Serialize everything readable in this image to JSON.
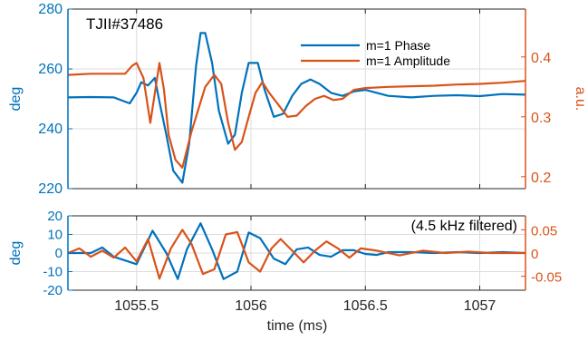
{
  "colors": {
    "blue": "#0072BD",
    "orange": "#D95319",
    "grid": "#dcdcdc",
    "axis": "#262626"
  },
  "xlabel": "time (ms)",
  "xticks": [
    1055.5,
    1056,
    1056.5,
    1057
  ],
  "xlim": [
    1055.2,
    1057.2
  ],
  "chart_data": [
    {
      "type": "line",
      "annotation": "TJII#37486",
      "ylabel": "deg",
      "ylim": [
        220,
        280
      ],
      "yticks": [
        220,
        240,
        260,
        280
      ],
      "ylabel_right": "a.u.",
      "ylim_right": [
        0.18,
        0.48
      ],
      "yticks_right": [
        0.2,
        0.3,
        0.4
      ],
      "grid": true,
      "legend_position": "top-right",
      "series": [
        {
          "name": "m=1 Phase",
          "axis": "left",
          "x": [
            1055.2,
            1055.3,
            1055.4,
            1055.47,
            1055.5,
            1055.52,
            1055.55,
            1055.58,
            1055.6,
            1055.63,
            1055.66,
            1055.7,
            1055.73,
            1055.76,
            1055.78,
            1055.8,
            1055.83,
            1055.86,
            1055.9,
            1055.93,
            1055.96,
            1055.99,
            1056.03,
            1056.06,
            1056.1,
            1056.14,
            1056.18,
            1056.22,
            1056.26,
            1056.3,
            1056.35,
            1056.4,
            1056.45,
            1056.5,
            1056.6,
            1056.7,
            1056.8,
            1056.9,
            1057.0,
            1057.1,
            1057.2
          ],
          "y": [
            250.5,
            250.6,
            250.5,
            248.5,
            252,
            255.5,
            254.5,
            257,
            249,
            238,
            226,
            222,
            235,
            261,
            272,
            272,
            262,
            246,
            235,
            238,
            252,
            262,
            262,
            253,
            244,
            245,
            251,
            255,
            256.5,
            255,
            252,
            251,
            252.5,
            253,
            251,
            250.5,
            251,
            251.2,
            250.9,
            251.6,
            251.4
          ]
        },
        {
          "name": "m=1 Amplitude",
          "axis": "right",
          "x": [
            1055.2,
            1055.3,
            1055.4,
            1055.45,
            1055.48,
            1055.5,
            1055.53,
            1055.56,
            1055.6,
            1055.62,
            1055.64,
            1055.67,
            1055.7,
            1055.72,
            1055.74,
            1055.76,
            1055.8,
            1055.84,
            1055.87,
            1055.9,
            1055.93,
            1055.96,
            1055.99,
            1056.02,
            1056.05,
            1056.08,
            1056.12,
            1056.16,
            1056.2,
            1056.24,
            1056.28,
            1056.32,
            1056.36,
            1056.4,
            1056.45,
            1056.5,
            1056.6,
            1056.7,
            1056.8,
            1056.9,
            1057.0,
            1057.1,
            1057.2
          ],
          "y": [
            0.37,
            0.372,
            0.372,
            0.372,
            0.385,
            0.39,
            0.365,
            0.29,
            0.39,
            0.345,
            0.27,
            0.228,
            0.215,
            0.245,
            0.275,
            0.3,
            0.35,
            0.37,
            0.355,
            0.29,
            0.245,
            0.258,
            0.3,
            0.34,
            0.358,
            0.34,
            0.32,
            0.3,
            0.302,
            0.318,
            0.33,
            0.335,
            0.328,
            0.33,
            0.345,
            0.348,
            0.35,
            0.351,
            0.352,
            0.354,
            0.355,
            0.357,
            0.36
          ]
        }
      ]
    },
    {
      "type": "line",
      "annotation": "(4.5 kHz filtered)",
      "ylabel": "deg",
      "ylim": [
        -20,
        20
      ],
      "yticks": [
        -20,
        -10,
        0,
        10,
        20
      ],
      "ylim_right": [
        -0.08,
        0.08
      ],
      "yticks_right": [
        -0.05,
        0,
        0.05
      ],
      "grid": true,
      "series": [
        {
          "axis": "left",
          "x": [
            1055.2,
            1055.3,
            1055.35,
            1055.4,
            1055.45,
            1055.5,
            1055.57,
            1055.63,
            1055.68,
            1055.72,
            1055.78,
            1055.83,
            1055.88,
            1055.94,
            1055.99,
            1056.04,
            1056.1,
            1056.15,
            1056.2,
            1056.25,
            1056.3,
            1056.35,
            1056.4,
            1056.45,
            1056.5,
            1056.55,
            1056.6,
            1056.7,
            1056.8,
            1056.9,
            1057.0,
            1057.1,
            1057.2
          ],
          "y": [
            0,
            0,
            3,
            -2,
            -4,
            -6,
            12,
            0,
            -14,
            2,
            16,
            2,
            -14,
            -10,
            11,
            8,
            -3,
            -6,
            2,
            3,
            -1,
            -2,
            1.5,
            1.5,
            -0.5,
            -1,
            0.5,
            0.5,
            0,
            0.5,
            0,
            0.5,
            0
          ]
        },
        {
          "axis": "right",
          "x": [
            1055.2,
            1055.25,
            1055.3,
            1055.35,
            1055.4,
            1055.45,
            1055.5,
            1055.55,
            1055.6,
            1055.65,
            1055.7,
            1055.74,
            1055.79,
            1055.84,
            1055.89,
            1055.94,
            1055.99,
            1056.04,
            1056.09,
            1056.13,
            1056.18,
            1056.23,
            1056.28,
            1056.33,
            1056.38,
            1056.43,
            1056.48,
            1056.55,
            1056.65,
            1056.75,
            1056.85,
            1056.95,
            1057.05,
            1057.2
          ],
          "y": [
            0,
            0.01,
            -0.008,
            0.005,
            -0.01,
            0.012,
            -0.018,
            0.03,
            -0.055,
            0.01,
            0.05,
            0.02,
            -0.045,
            -0.035,
            0.04,
            0.045,
            -0.02,
            -0.04,
            0.01,
            0.03,
            0.005,
            -0.02,
            0.005,
            0.025,
            0.01,
            -0.01,
            0.01,
            0.005,
            -0.005,
            0.005,
            0,
            0.003,
            0,
            0
          ]
        }
      ]
    }
  ]
}
